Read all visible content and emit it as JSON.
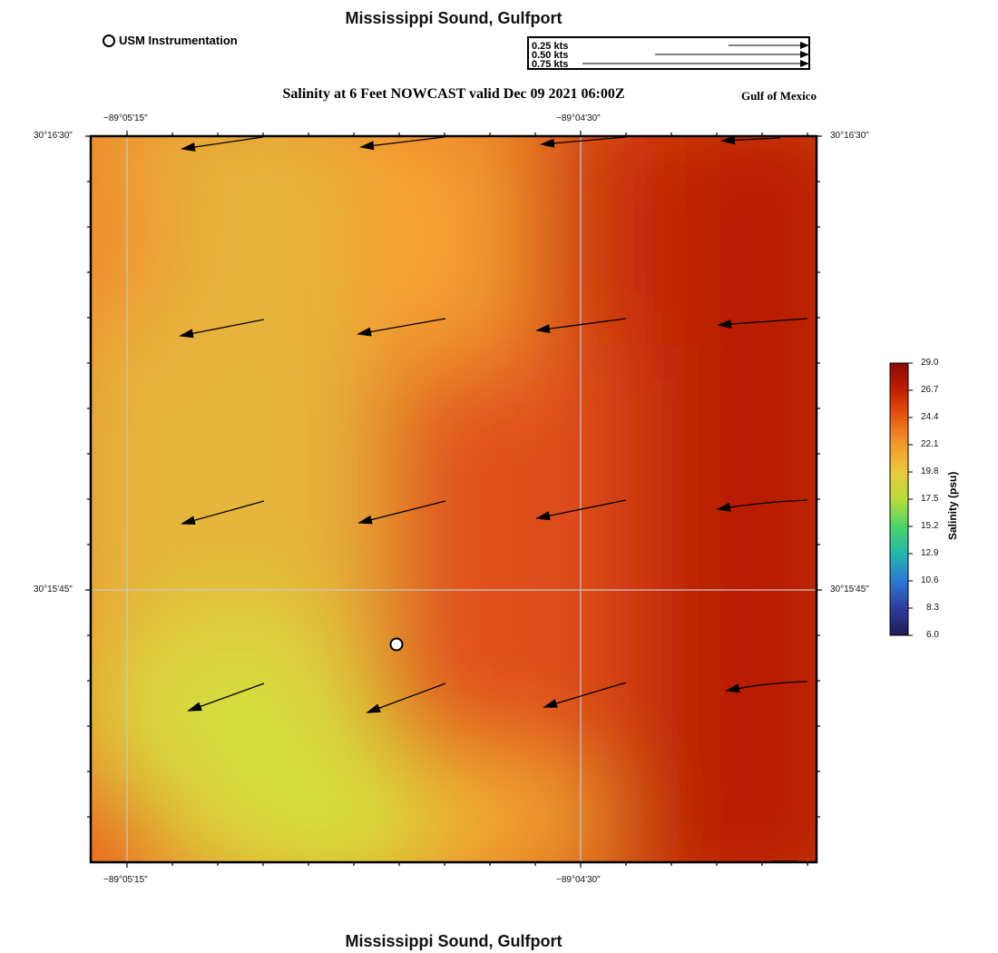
{
  "station": "Mississippi Sound, Gulfport",
  "footer_title": "Mississippi Sound, Gulfport",
  "legend_usm": "USM Instrumentation",
  "speed_legend": [
    "0.25 kts",
    "0.50 kts",
    "0.75 kts"
  ],
  "subtitle": "Salinity at 6 Feet NOWCAST valid Dec 09 2021 06:00Z",
  "region": "Gulf of Mexico",
  "lon_labels_top": [
    "−89°05'15\"",
    "−89°04'30\""
  ],
  "lon_labels_bottom": [
    "−89°05'15\"",
    "−89°04'30\""
  ],
  "lat_labels_left": [
    "30°16'30\"",
    "30°15'45\""
  ],
  "lat_labels_right": [
    "30°16'30\"",
    "30°15'45\""
  ],
  "colorbar": {
    "title": "Salinity (psu)",
    "ticks": [
      "29.0",
      "26.7",
      "24.4",
      "22.1",
      "19.8",
      "17.5",
      "15.2",
      "12.9",
      "10.6",
      "8.3",
      "6.0"
    ],
    "colors": [
      "#8b0a00",
      "#c41f00",
      "#e85a13",
      "#f39a2a",
      "#e9c93a",
      "#b8dc3a",
      "#4bd46a",
      "#22b7ab",
      "#2c79d4",
      "#2d3d9c",
      "#221a57"
    ]
  },
  "map": {
    "field_colors": {
      "orange": "#f5a030",
      "yellow": "#e8c83a",
      "green_yellow": "#d4e03a",
      "red_orange": "#e8601a",
      "deep_red": "#b81800"
    },
    "station_marker": "USM Instrumentation"
  }
}
